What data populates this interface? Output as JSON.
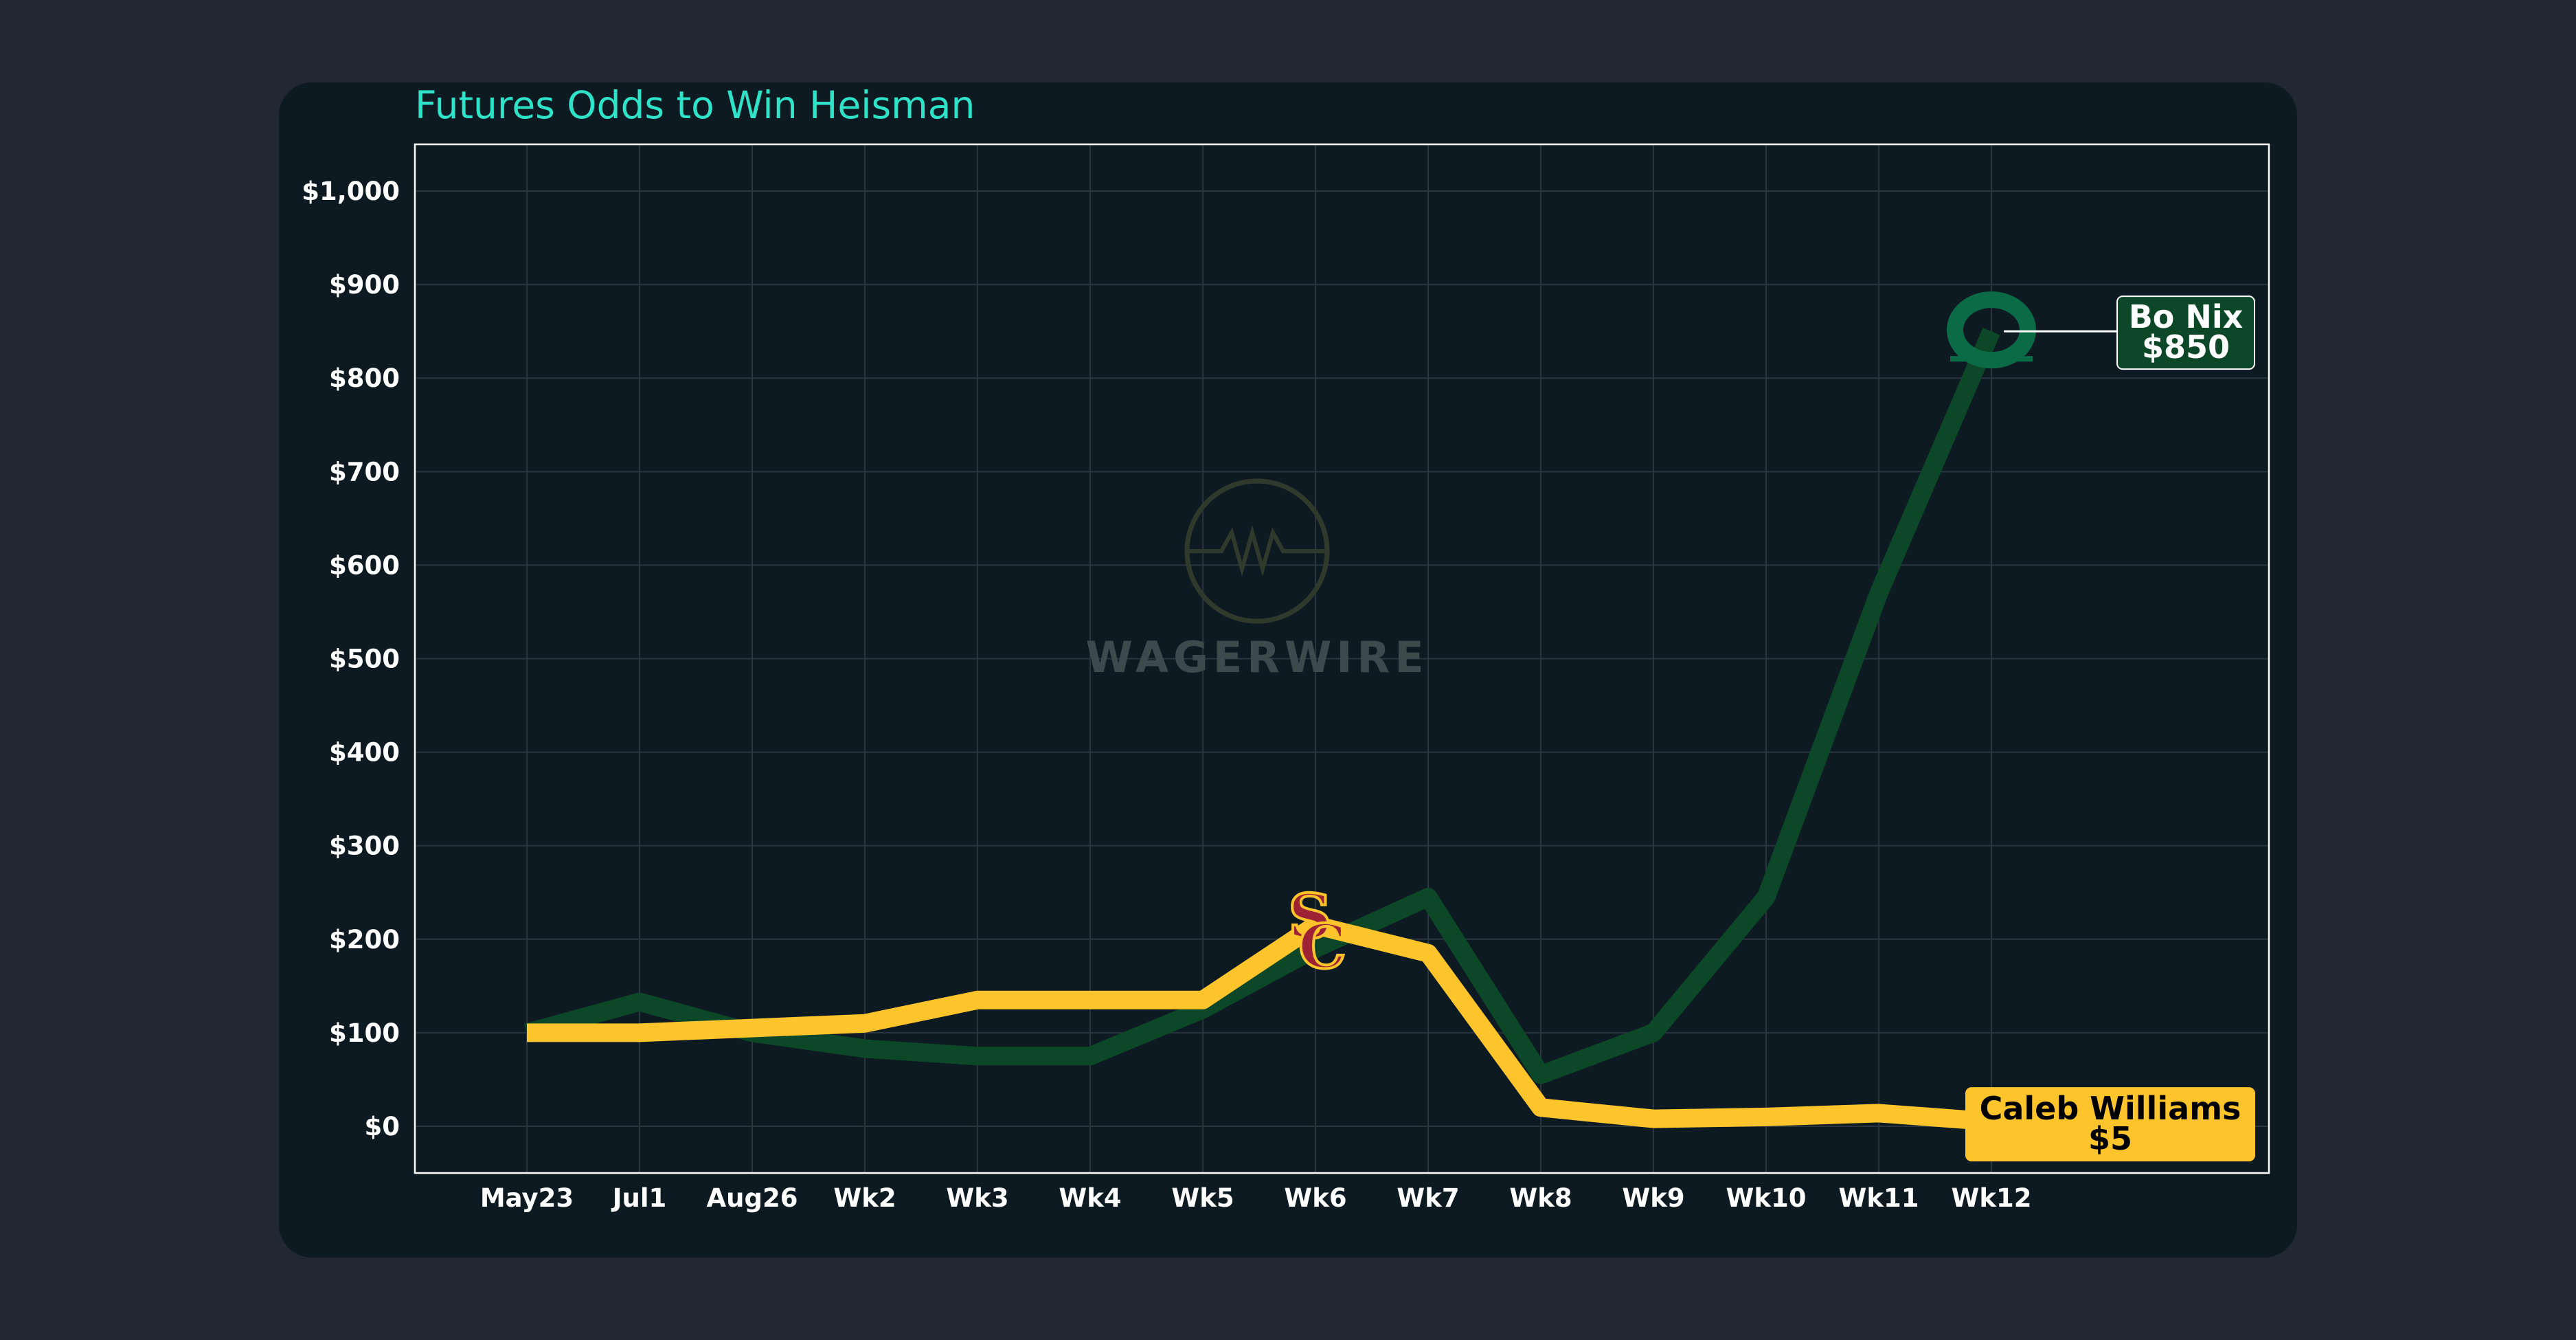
{
  "chart_data": {
    "type": "line",
    "title": "Futures Odds to Win Heisman",
    "xlabel": "",
    "ylabel": "",
    "ylim": [
      -50,
      1050
    ],
    "yticks": [
      0,
      100,
      200,
      300,
      400,
      500,
      600,
      700,
      800,
      900,
      1000
    ],
    "ytick_labels": [
      "$0",
      "$100",
      "$200",
      "$300",
      "$400",
      "$500",
      "$600",
      "$700",
      "$800",
      "$900",
      "$1,000"
    ],
    "categories": [
      "May23",
      "Jul1",
      "Aug26",
      "Wk2",
      "Wk3",
      "Wk4",
      "Wk5",
      "Wk6",
      "Wk7",
      "Wk8",
      "Wk9",
      "Wk10",
      "Wk11",
      "Wk12"
    ],
    "series": [
      {
        "name": "Bo Nix",
        "team": "Oregon",
        "color": "#0c4727",
        "logo_color": "#0b6b47",
        "logo_icon": "oregon-o-logo",
        "values": [
          100,
          133,
          100,
          83,
          75,
          75,
          125,
          190,
          245,
          55,
          100,
          245,
          570,
          850
        ],
        "label_name": "Bo Nix",
        "label_value": "$850",
        "label_bg": "#0c4727",
        "label_text": "#ffffff"
      },
      {
        "name": "Caleb Williams",
        "team": "USC",
        "color": "#fdc42b",
        "logo_color": "#9d2235",
        "logo_icon": "usc-sc-logo",
        "values": [
          100,
          100,
          105,
          110,
          135,
          135,
          135,
          215,
          185,
          20,
          8,
          10,
          14,
          5
        ],
        "label_name": "Caleb Williams",
        "label_value": "$5",
        "label_bg": "#fdc42b",
        "label_text": "#000000"
      }
    ],
    "logo_positions": [
      {
        "series": 0,
        "category": "Wk12"
      },
      {
        "series": 1,
        "category": "Wk6"
      }
    ],
    "grid": true,
    "legend": "none",
    "watermark": {
      "text": "WAGERWIRE",
      "icon": "wagerwire-logo-icon"
    },
    "colors": {
      "title": "#2ee3c8",
      "ticks": "#ffffff",
      "grid": "#2a3540",
      "frame": "#ffffff",
      "watermark": "#3d4a4c"
    }
  }
}
